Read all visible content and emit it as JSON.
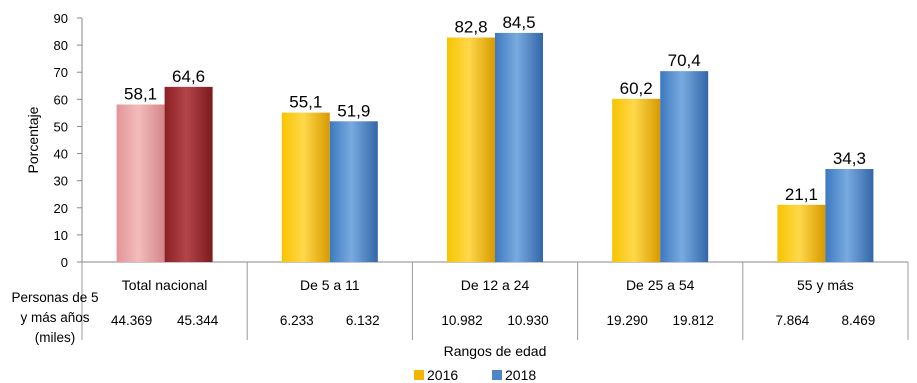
{
  "chart_data": {
    "type": "bar",
    "categories": [
      "Total nacional",
      "De 5 a 11",
      "De 12 a 24",
      "De 25 a 54",
      "55 y más"
    ],
    "series": [
      {
        "name": "2016",
        "values": [
          58.1,
          55.1,
          82.8,
          60.2,
          21.1
        ],
        "labels": [
          "58,1",
          "55,1",
          "82,8",
          "60,2",
          "21,1"
        ],
        "color": "#f2b600"
      },
      {
        "name": "2018",
        "values": [
          64.6,
          51.9,
          84.5,
          70.4,
          34.3
        ],
        "labels": [
          "64,6",
          "51,9",
          "84,5",
          "70,4",
          "34,3"
        ],
        "color": "#4a86c8"
      }
    ],
    "highlight_colors": [
      "#e9a3a5",
      "#9b2a2e"
    ],
    "xlabel": "Rangos de edad",
    "ylabel": "Porcentaje",
    "ylim": [
      0,
      90
    ],
    "yticks": [
      0,
      10,
      20,
      30,
      40,
      50,
      60,
      70,
      80,
      90
    ],
    "table": {
      "row_label": [
        "Personas de 5",
        "y más años",
        "(miles)"
      ],
      "values_2016": [
        "44.369",
        "6.233",
        "10.982",
        "19.290",
        "7.864"
      ],
      "values_2018": [
        "45.344",
        "6.132",
        "10.930",
        "19.812",
        "8.469"
      ]
    },
    "legend_position": "bottom-center",
    "grid": false
  }
}
